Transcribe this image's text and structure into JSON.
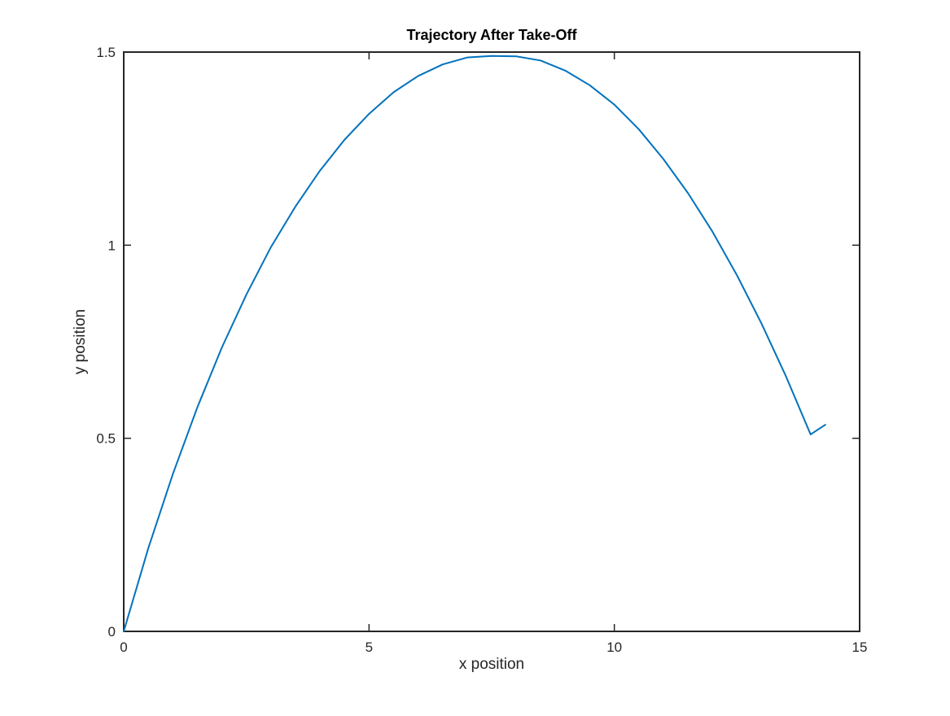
{
  "chart_data": {
    "type": "line",
    "title": "Trajectory After Take-Off",
    "xlabel": "x position",
    "ylabel": "y position",
    "xlim": [
      0,
      15
    ],
    "ylim": [
      0,
      1.5
    ],
    "xticks": [
      0,
      5,
      10,
      15
    ],
    "yticks": [
      0,
      0.5,
      1,
      1.5
    ],
    "xtick_labels": [
      "0",
      "5",
      "10",
      "15"
    ],
    "ytick_labels": [
      "0",
      "0.5",
      "1",
      "1.5"
    ],
    "grid": false,
    "legend": "none",
    "series": [
      {
        "color": "#0072BD",
        "x": [
          0,
          0.5,
          1,
          1.5,
          2,
          2.5,
          3,
          3.5,
          4,
          4.5,
          5,
          5.5,
          6,
          6.5,
          7,
          7.5,
          8,
          8.5,
          9,
          9.5,
          10,
          10.5,
          11,
          11.5,
          12,
          12.5,
          13,
          13.5,
          14,
          14.3
        ],
        "y": [
          0,
          0.215,
          0.407,
          0.58,
          0.735,
          0.872,
          0.995,
          1.1,
          1.193,
          1.273,
          1.34,
          1.396,
          1.438,
          1.468,
          1.486,
          1.49,
          1.489,
          1.478,
          1.452,
          1.414,
          1.364,
          1.3,
          1.223,
          1.135,
          1.035,
          0.922,
          0.797,
          0.66,
          0.51,
          0.535
        ]
      }
    ]
  }
}
